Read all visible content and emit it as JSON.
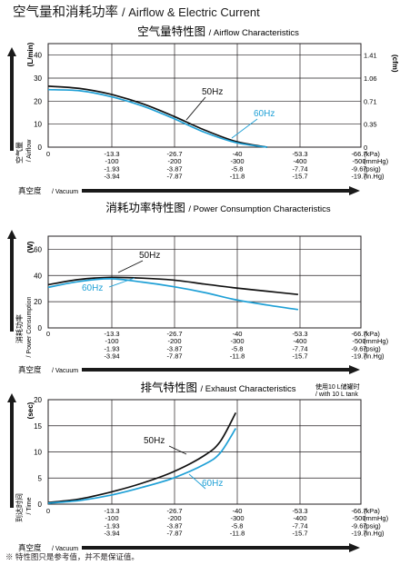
{
  "page": {
    "title_cn": "空气量和消耗功率",
    "title_en": "/ Airflow & Electric Current",
    "note": "※ 特性图只是参考值，并不是保证值。"
  },
  "colors": {
    "line_50hz": "#111111",
    "line_60hz": "#1fa0d6",
    "grid": "#231f20",
    "arrow": "#1a1a1a"
  },
  "x_axis": {
    "label_cn": "真空度",
    "label_en": "/ Vacuum",
    "ticks": [
      {
        "kpa": "0",
        "mmhg": "",
        "psig": "",
        "inhg": ""
      },
      {
        "kpa": "-13.3",
        "mmhg": "-100",
        "psig": "-1.93",
        "inhg": "-3.94"
      },
      {
        "kpa": "-26.7",
        "mmhg": "-200",
        "psig": "-3.87",
        "inhg": "-7.87"
      },
      {
        "kpa": "-40",
        "mmhg": "-300",
        "psig": "-5.8",
        "inhg": "-11.8"
      },
      {
        "kpa": "-53.3",
        "mmhg": "-400",
        "psig": "-7.74",
        "inhg": "-15.7"
      },
      {
        "kpa": "-66.7",
        "mmhg": "-500",
        "psig": "-9.67",
        "inhg": "-19.7"
      }
    ],
    "units": [
      "(kPa)",
      "(mmHg)",
      "(psig)",
      "(in.Hg)"
    ]
  },
  "chart_data": [
    {
      "type": "line",
      "title_cn": "空气量特性图",
      "title_en": "/ Airflow Characteristics",
      "ylabel_cn": "空气量",
      "ylabel_en": "/ Airflow",
      "yunit": "(L/min)",
      "yunit_right": "(cfm)",
      "ylim": [
        0,
        45
      ],
      "yticks": [
        0,
        10,
        20,
        30,
        40
      ],
      "yticks_right": [
        {
          "value": 0,
          "label": "0"
        },
        {
          "value": 10,
          "label": "0.35"
        },
        {
          "value": 20,
          "label": "0.71"
        },
        {
          "value": 30,
          "label": "1.06"
        },
        {
          "value": 40,
          "label": "1.41"
        }
      ],
      "xlim": [
        0,
        -66.7
      ],
      "series": [
        {
          "name": "50Hz",
          "x": [
            0,
            -6.7,
            -13.3,
            -20,
            -26.7,
            -33.3,
            -40,
            -46.7
          ],
          "y": [
            26.5,
            25.5,
            23,
            19,
            13.5,
            7.5,
            2.5,
            0
          ]
        },
        {
          "name": "60Hz",
          "x": [
            0,
            -6.7,
            -13.3,
            -20,
            -26.7,
            -33.3,
            -40,
            -46.7
          ],
          "y": [
            25,
            24.5,
            22,
            18,
            12.5,
            6.5,
            2,
            0
          ]
        }
      ]
    },
    {
      "type": "line",
      "title_cn": "消耗功率特性图",
      "title_en": "/ Power Consumption Characteristics",
      "ylabel_cn": "消耗功率",
      "ylabel_en": "/ Power Consumption",
      "yunit": "(W)",
      "ylim": [
        0,
        70
      ],
      "yticks": [
        0,
        20,
        40,
        60
      ],
      "xlim": [
        0,
        -66.7
      ],
      "series": [
        {
          "name": "50Hz",
          "x": [
            0,
            -6.7,
            -13.3,
            -20,
            -26.7,
            -33.3,
            -40,
            -46.7,
            -53.3
          ],
          "y": [
            33,
            37,
            38.5,
            38,
            36.5,
            33.5,
            30.5,
            28,
            25.5
          ]
        },
        {
          "name": "60Hz",
          "x": [
            0,
            -6.7,
            -13.3,
            -20,
            -26.7,
            -33.3,
            -40,
            -46.7,
            -53.3
          ],
          "y": [
            31,
            35.5,
            37.5,
            35,
            31.5,
            27,
            21.5,
            17.5,
            14
          ]
        }
      ]
    },
    {
      "type": "line",
      "title_cn": "排气特性图",
      "title_en": "/ Exhaust Characteristics",
      "ylabel_cn": "到达时间",
      "ylabel_en": "/ Time",
      "yunit": "(sec)",
      "ylim": [
        0,
        20
      ],
      "yticks": [
        0,
        5,
        10,
        15,
        20
      ],
      "xlim": [
        0,
        -66.7
      ],
      "tank_note_cn": "使用10 L储罐时",
      "tank_note_en": "/ with 10 L tank",
      "series": [
        {
          "name": "50Hz",
          "x": [
            0,
            -6.7,
            -13.3,
            -20,
            -26.7,
            -33.3,
            -36.7,
            -40
          ],
          "y": [
            0.3,
            1.0,
            2.3,
            4.0,
            6.2,
            9.3,
            12.0,
            17.5
          ]
        },
        {
          "name": "60Hz",
          "x": [
            0,
            -6.7,
            -13.3,
            -20,
            -26.7,
            -33.3,
            -36.7,
            -40
          ],
          "y": [
            0.2,
            0.7,
            1.7,
            3.2,
            5.0,
            7.6,
            9.8,
            14.5
          ]
        }
      ]
    }
  ]
}
